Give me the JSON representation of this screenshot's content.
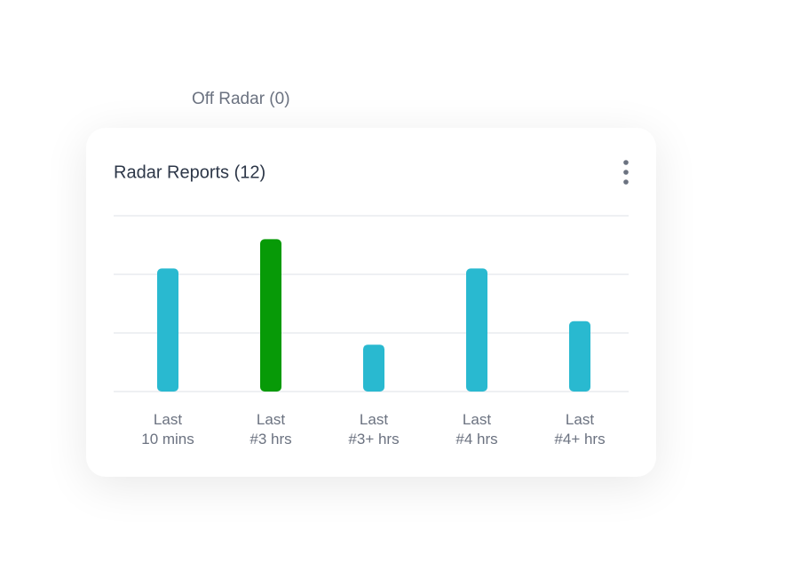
{
  "header": {
    "tab": "Off Radar (0)"
  },
  "chart_data": {
    "type": "bar",
    "title": "Radar Reports (12)",
    "categories": [
      "Last\n10 mins",
      "Last\n#3 hrs",
      "Last\n#3+ hrs",
      "Last\n#4 hrs",
      "Last\n#4+ hrs"
    ],
    "values": [
      2.1,
      2.6,
      0.8,
      2.1,
      1.2
    ],
    "colors": [
      "#29b9d0",
      "#079a07",
      "#29b9d0",
      "#29b9d0",
      "#29b9d0"
    ],
    "ylim": [
      0,
      3
    ],
    "yticks": [
      0,
      1,
      2,
      3
    ],
    "grid": true
  }
}
